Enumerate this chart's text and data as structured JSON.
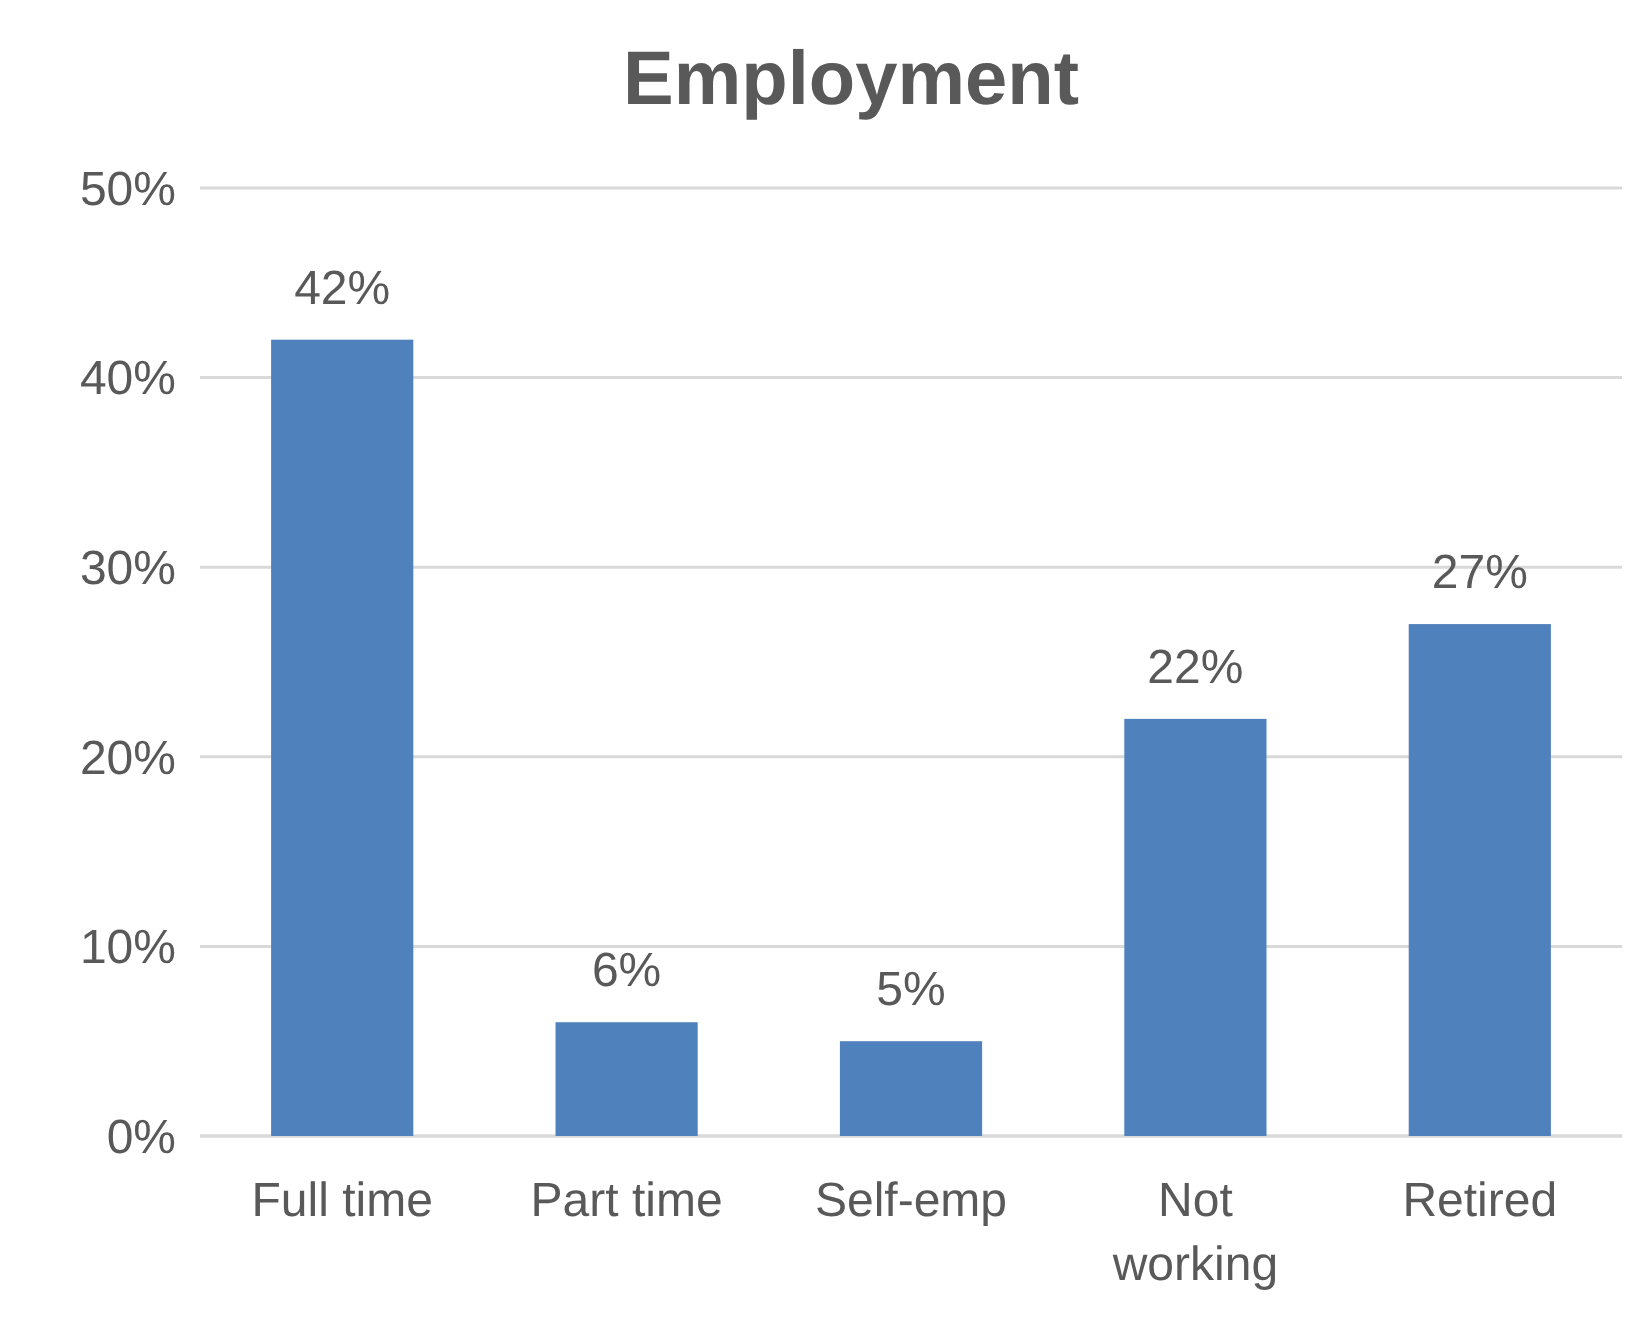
{
  "chart_data": {
    "type": "bar",
    "title": "Employment",
    "categories": [
      "Full time",
      "Part time",
      "Self-emp",
      "Not working",
      "Retired"
    ],
    "values": [
      42,
      6,
      5,
      22,
      27
    ],
    "color": "#4f81bd",
    "value_labels": [
      "42%",
      "6%",
      "5%",
      "22%",
      "27%"
    ],
    "ylim": [
      0,
      50
    ],
    "yticks": [
      {
        "value": 0,
        "label": "0%"
      },
      {
        "value": 10,
        "label": "10%"
      },
      {
        "value": 20,
        "label": "20%"
      },
      {
        "value": 30,
        "label": "30%"
      },
      {
        "value": 40,
        "label": "40%"
      },
      {
        "value": 50,
        "label": "50%"
      }
    ],
    "grid": true
  }
}
